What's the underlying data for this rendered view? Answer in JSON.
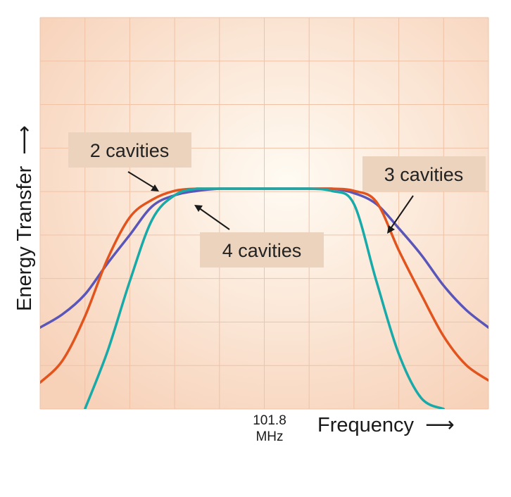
{
  "chart_data": {
    "type": "line",
    "title": "",
    "xlabel": "Frequency",
    "ylabel": "Energy Transfer",
    "x_arrow": "⟶",
    "y_arrow": "⟶",
    "center_tick": {
      "value": "101.8",
      "unit": "MHz"
    },
    "xlim": [
      -10,
      10
    ],
    "ylim": [
      0,
      1
    ],
    "grid": true,
    "colors": {
      "background_center": "#fffbf3",
      "background_edge": "#f7d1b8",
      "grid": "#f0c2a6"
    },
    "series": [
      {
        "name": "2 cavities",
        "color": "#5a55b8",
        "x": [
          -10,
          -9,
          -8,
          -7,
          -6,
          -5,
          -4,
          -3,
          -2,
          -1,
          0,
          1,
          2,
          3,
          4,
          5,
          6,
          7,
          8,
          9,
          10
        ],
        "y": [
          0.37,
          0.43,
          0.52,
          0.66,
          0.79,
          0.92,
          0.97,
          0.99,
          1.0,
          1.0,
          1.0,
          1.0,
          1.0,
          1.0,
          0.98,
          0.93,
          0.82,
          0.7,
          0.56,
          0.45,
          0.37
        ]
      },
      {
        "name": "3 cavities",
        "color": "#e2541e",
        "x": [
          -10,
          -9,
          -8,
          -7,
          -6,
          -5,
          -4,
          -3,
          -2,
          -1,
          0,
          1,
          2,
          3,
          4,
          5,
          6,
          7,
          8,
          9,
          10
        ],
        "y": [
          0.12,
          0.22,
          0.42,
          0.68,
          0.87,
          0.95,
          0.99,
          1.0,
          1.0,
          1.0,
          1.0,
          1.0,
          1.0,
          1.0,
          0.99,
          0.94,
          0.72,
          0.52,
          0.33,
          0.2,
          0.13
        ]
      },
      {
        "name": "4 cavities",
        "color": "#18aaa8",
        "x": [
          -8,
          -7,
          -6,
          -5,
          -4,
          -3,
          -2,
          -1,
          0,
          1,
          2,
          3,
          4,
          5,
          6,
          7,
          8
        ],
        "y": [
          0.0,
          0.26,
          0.58,
          0.86,
          0.97,
          1.0,
          1.0,
          1.0,
          1.0,
          1.0,
          1.0,
          0.99,
          0.93,
          0.58,
          0.25,
          0.05,
          0.0
        ]
      }
    ],
    "callouts": [
      {
        "label": "2 cavities",
        "series": "2 cavities"
      },
      {
        "label": "3 cavities",
        "series": "3 cavities"
      },
      {
        "label": "4 cavities",
        "series": "4 cavities"
      }
    ]
  }
}
